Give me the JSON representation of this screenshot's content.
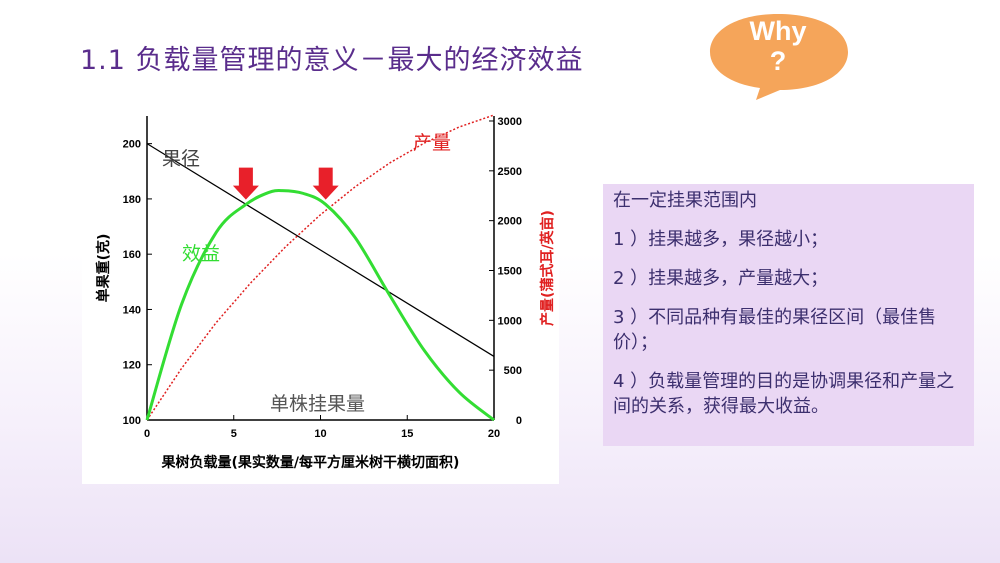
{
  "slide": {
    "title": "1.1  负载量管理的意义－最大的经济效益",
    "callout": {
      "line1": "Why",
      "line2": "?"
    }
  },
  "textbox": {
    "items": [
      "在一定挂果范围内",
      "1 ）挂果越多，果径越小；",
      "2 ）挂果越多，产量越大；",
      "3 ）不同品种有最佳的果径区间（最佳售价）；",
      "4 ）负载量管理的目的是协调果径和产量之间的关系，获得最大收益。"
    ]
  },
  "colors": {
    "title": "#5a2d8c",
    "callout": "#f5a55a",
    "textbox_bg": "#ead7f4",
    "fruit_size_line": "#000000",
    "yield_line": "#e02020",
    "benefit_line": "#33dd33",
    "arrow": "#e8202a"
  },
  "chart_data": {
    "type": "line",
    "xlabel": "果树负载量(果实数量/每平方厘米树干横切面积)",
    "ylabel_left": "单果重(克)",
    "ylabel_right": "产量(蒲式耳/英亩)",
    "x_ticks": [
      0,
      5,
      10,
      15,
      20
    ],
    "y_left_ticks": [
      100,
      120,
      140,
      160,
      180,
      200
    ],
    "y_right_ticks": [
      0,
      500,
      1000,
      1500,
      2000,
      2500,
      3000
    ],
    "xlim": [
      0,
      20
    ],
    "ylim_left": [
      100,
      210
    ],
    "ylim_right": [
      0,
      3050
    ],
    "series": [
      {
        "name": "果径",
        "axis": "left",
        "style": "solid",
        "x": [
          0,
          20
        ],
        "y": [
          200,
          123
        ]
      },
      {
        "name": "产量",
        "axis": "right",
        "style": "dotted",
        "x": [
          0,
          2,
          4,
          6,
          8,
          10,
          12,
          14,
          16,
          18,
          20
        ],
        "y": [
          0,
          520,
          980,
          1380,
          1740,
          2060,
          2340,
          2580,
          2780,
          2940,
          3060
        ]
      },
      {
        "name": "效益",
        "axis": "left",
        "style": "solid-thick",
        "x": [
          0,
          2,
          4,
          5.7,
          7,
          7.8,
          9,
          10.3,
          12,
          14,
          16,
          18,
          20
        ],
        "y": [
          100,
          142,
          168,
          178,
          182.3,
          183,
          182,
          178,
          166,
          145,
          125,
          110,
          100
        ]
      }
    ],
    "annotations": [
      {
        "text": "果径"
      },
      {
        "text": "产量"
      },
      {
        "text": "效益"
      },
      {
        "text": "单株挂果量"
      }
    ],
    "arrows_at_x": [
      5.7,
      10.3
    ],
    "grid": false,
    "legend": "none"
  }
}
